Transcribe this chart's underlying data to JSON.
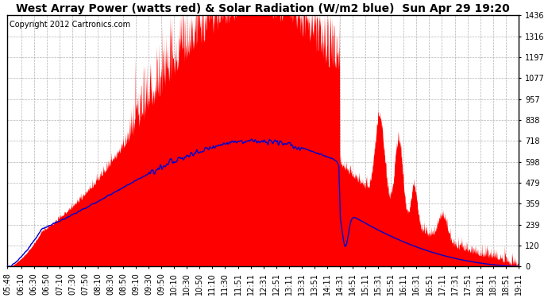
{
  "title": "West Array Power (watts red) & Solar Radiation (W/m2 blue)  Sun Apr 29 19:20",
  "copyright": "Copyright 2012 Cartronics.com",
  "yticks": [
    0.0,
    119.7,
    239.3,
    359.0,
    478.6,
    598.3,
    717.9,
    837.6,
    957.3,
    1076.9,
    1196.6,
    1316.2,
    1435.9
  ],
  "ymax": 1435.9,
  "ymin": 0.0,
  "background_color": "#ffffff",
  "red_color": "#ff0000",
  "blue_color": "#0000cc",
  "grid_color": "#aaaaaa",
  "title_fontsize": 10,
  "copyright_fontsize": 7,
  "tick_fontsize": 7,
  "x_labels": [
    "05:48",
    "06:10",
    "06:30",
    "06:50",
    "07:10",
    "07:30",
    "07:50",
    "08:10",
    "08:30",
    "08:50",
    "09:10",
    "09:30",
    "09:50",
    "10:10",
    "10:30",
    "10:50",
    "11:10",
    "11:30",
    "11:51",
    "12:11",
    "12:31",
    "12:51",
    "13:11",
    "13:31",
    "13:51",
    "14:11",
    "14:31",
    "14:51",
    "15:11",
    "15:31",
    "15:51",
    "16:11",
    "16:31",
    "16:51",
    "17:11",
    "17:31",
    "17:51",
    "18:11",
    "18:31",
    "18:51",
    "19:11"
  ]
}
